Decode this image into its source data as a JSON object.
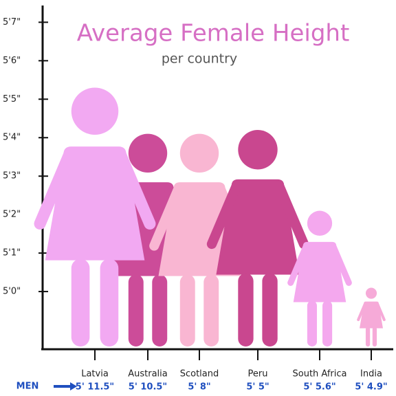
{
  "chart_data": {
    "type": "pictograph",
    "title": "Average Female Height",
    "subtitle": "per country",
    "categories": [
      "Latvia",
      "Australia",
      "Scotland",
      "Peru",
      "South Africa",
      "India"
    ],
    "values": [
      65.3,
      64.1,
      64.1,
      64.2,
      62.1,
      60.1
    ],
    "colors": [
      "#f2a9f2",
      "#cc4c99",
      "#f9b6d2",
      "#c9478f",
      "#f4a8ee",
      "#f6aad8"
    ],
    "men": {
      "name": "MEN",
      "values": [
        71.5,
        70.5,
        68,
        65,
        65.6,
        64.9
      ],
      "value_labels": [
        "5' 11.5\"",
        "5' 10.5\"",
        "5' 8\"",
        "5' 5\"",
        "5' 5.6\"",
        "5' 4.9\""
      ],
      "color": "#1f4fbf"
    },
    "ylim": [
      58.5,
      67.4
    ],
    "yticks": [
      {
        "value": 60,
        "label": "5'0\""
      },
      {
        "value": 61,
        "label": "5'1\""
      },
      {
        "value": 62,
        "label": "5'2\""
      },
      {
        "value": 63,
        "label": "5'3\""
      },
      {
        "value": 64,
        "label": "5'4\""
      },
      {
        "value": 65,
        "label": "5'5\""
      },
      {
        "value": 66,
        "label": "5'6\""
      },
      {
        "value": 67,
        "label": "5'7\""
      }
    ]
  }
}
